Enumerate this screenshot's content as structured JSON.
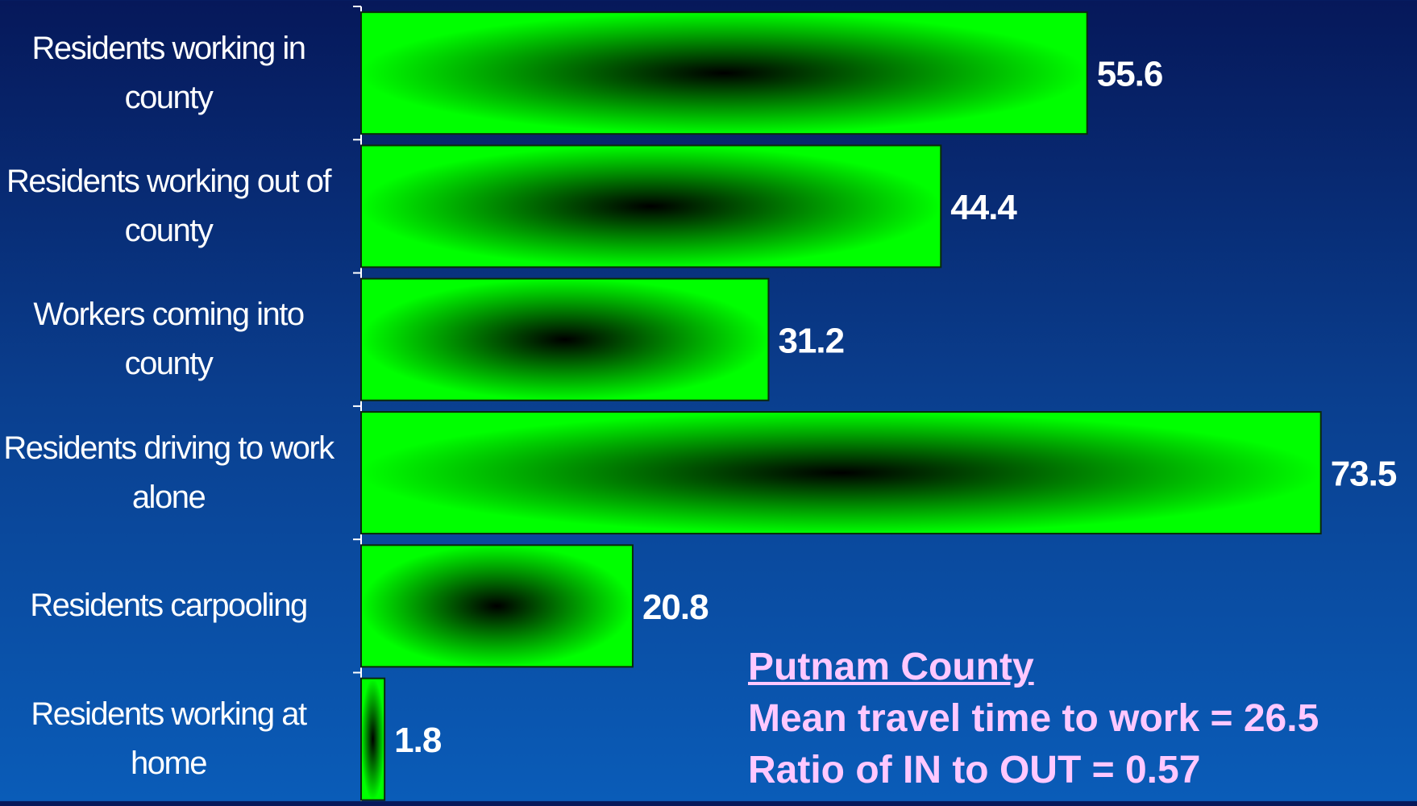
{
  "chart_data": {
    "type": "barh",
    "categories": [
      "Residents working in county",
      "Residents working out of county",
      "Workers coming into county",
      "Residents driving to work alone",
      "Residents carpooling",
      "Residents working at home"
    ],
    "values": [
      55.6,
      44.4,
      31.2,
      73.5,
      20.8,
      1.8
    ],
    "color": "#00ff00",
    "xlim": [
      0,
      80
    ],
    "annotations": [
      "Putnam County",
      "Mean travel time to work = 26.5",
      "Ratio of IN to OUT = 0.57"
    ]
  }
}
